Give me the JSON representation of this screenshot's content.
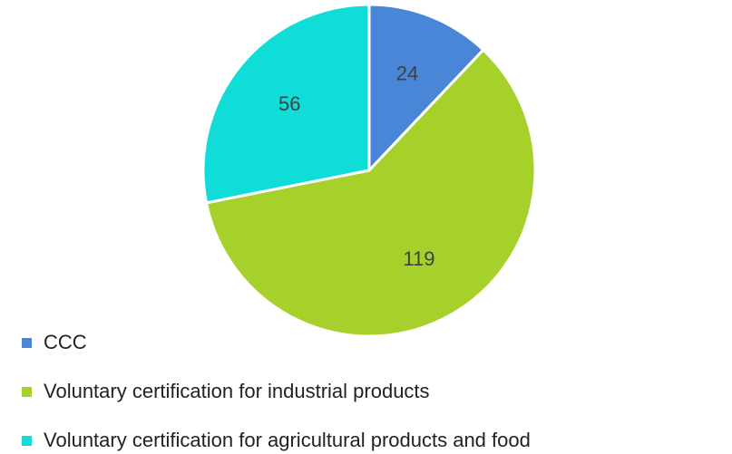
{
  "chart_data": {
    "type": "pie",
    "categories": [
      "CCC",
      "Voluntary certification for industrial products",
      "Voluntary certification for agricultural products and food"
    ],
    "values": [
      24,
      119,
      56
    ],
    "colors": [
      "#4a86d8",
      "#a6d12a",
      "#10ddd8"
    ],
    "legend": "bottom-left"
  }
}
